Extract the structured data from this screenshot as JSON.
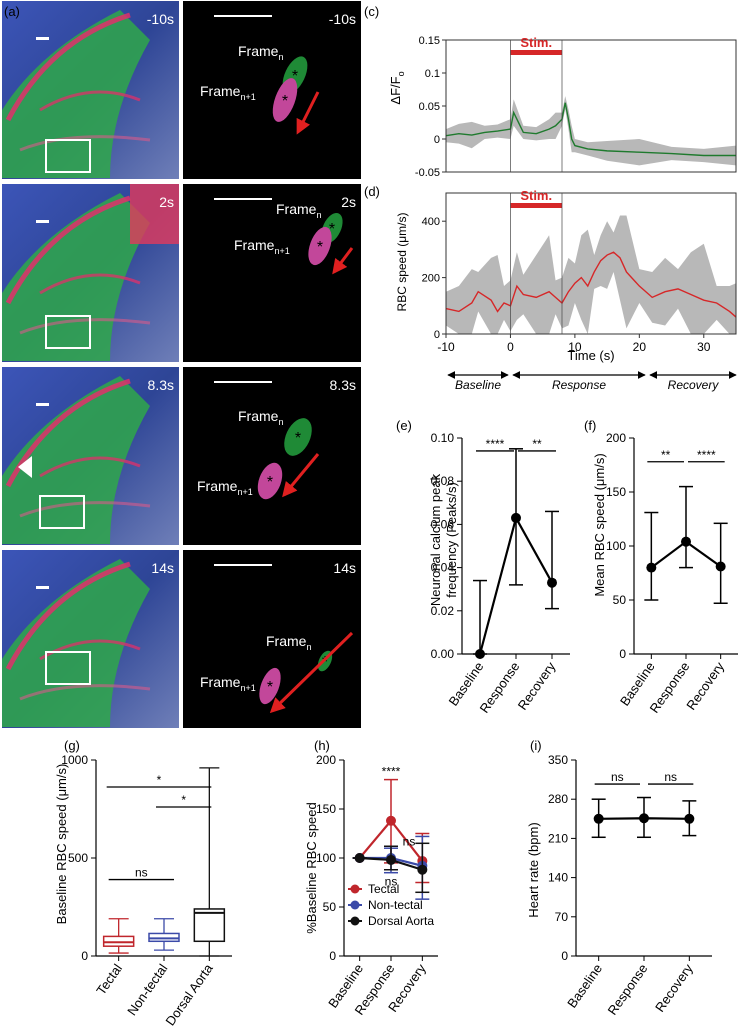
{
  "panel_labels": {
    "a": "(a)",
    "b": "(b)",
    "c": "(c)",
    "d": "(d)",
    "e": "(e)",
    "f": "(f)",
    "g": "(g)",
    "h": "(h)",
    "i": "(i)"
  },
  "micro_times": [
    "-10s",
    "2s",
    "8.3s",
    "14s"
  ],
  "frame_label": "Frame",
  "frame_sub_n": "n",
  "frame_sub_n1": "n+1",
  "asterisk": "*",
  "stim_label": "Stim.",
  "phases": [
    "Baseline",
    "Response",
    "Recovery"
  ],
  "colors": {
    "micro_bg": "#2b3a8c",
    "micro_green": "#2fa84a",
    "micro_red": "#e0306a",
    "frame_n": "#1f8a36",
    "frame_n1": "#c2479a",
    "arrow": "#e02020",
    "stim_bar": "#d62728",
    "calcium_line": "#1f7a2e",
    "rbc_line": "#d62728",
    "band": "#b8b8b8",
    "tectal": "#c0262c",
    "nontectal": "#3b4aa8",
    "dorsal": "#111111"
  },
  "chart_data": [
    {
      "id": "c",
      "type": "line",
      "ylabel": "ΔF/F",
      "ylabel_sub": "o",
      "xlim": [
        -10,
        35
      ],
      "ylim": [
        -0.05,
        0.15
      ],
      "yticks": [
        "-0.05",
        "0",
        "0.05",
        "0.1",
        "0.15"
      ],
      "stim": [
        0,
        8
      ],
      "series": [
        {
          "x": [
            -10,
            -8,
            -6,
            -4,
            -2,
            0,
            0.5,
            2,
            4,
            6,
            7,
            8,
            8.5,
            9,
            9.5,
            10,
            12,
            15,
            20,
            25,
            30,
            35
          ],
          "y": [
            0.005,
            0.008,
            0.006,
            0.01,
            0.012,
            0.015,
            0.04,
            0.01,
            0.008,
            0.015,
            0.02,
            0.03,
            0.055,
            0.03,
            0.0,
            -0.01,
            -0.015,
            -0.018,
            -0.02,
            -0.022,
            -0.025,
            -0.025
          ]
        }
      ]
    },
    {
      "id": "d",
      "type": "line",
      "ylabel": "RBC speed (μm/s)",
      "xlabel": "Time (s)",
      "xlim": [
        -10,
        35
      ],
      "ylim": [
        0,
        500
      ],
      "xticks": [
        "-10",
        "0",
        "10",
        "20",
        "30"
      ],
      "yticks": [
        "0",
        "200",
        "400"
      ],
      "stim": [
        0,
        8
      ],
      "series": [
        {
          "x": [
            -10,
            -8,
            -6,
            -5,
            -3,
            -2,
            -1,
            0,
            1,
            2,
            4,
            6,
            7,
            8,
            9,
            10,
            11,
            12,
            13,
            14,
            15,
            16,
            17,
            18,
            20,
            22,
            24,
            26,
            28,
            30,
            32,
            34,
            35
          ],
          "y": [
            90,
            80,
            110,
            150,
            120,
            80,
            110,
            100,
            170,
            140,
            130,
            150,
            130,
            110,
            150,
            180,
            200,
            170,
            220,
            260,
            280,
            290,
            270,
            220,
            170,
            130,
            150,
            160,
            140,
            120,
            110,
            80,
            60
          ]
        }
      ]
    },
    {
      "id": "e",
      "type": "line",
      "ylabel": "Neuronal calcium peak",
      "ylabel2": "frequency (Peaks/s)",
      "categories": [
        "Baseline",
        "Response",
        "Recovery"
      ],
      "yticks": [
        "0.00",
        "0.02",
        "0.04",
        "0.06",
        "0.08",
        "0.10"
      ],
      "ylim": [
        0,
        0.1
      ],
      "values": [
        0.0,
        0.063,
        0.033
      ],
      "err_low": [
        0.0,
        0.032,
        0.021
      ],
      "err_high": [
        0.034,
        0.095,
        0.066
      ],
      "annotations": [
        "****",
        "**"
      ]
    },
    {
      "id": "f",
      "type": "line",
      "ylabel": "Mean RBC speed (μm/s)",
      "categories": [
        "Baseline",
        "Response",
        "Recovery"
      ],
      "yticks": [
        "0",
        "50",
        "100",
        "150",
        "200"
      ],
      "ylim": [
        0,
        200
      ],
      "values": [
        80,
        104,
        81
      ],
      "err_low": [
        50,
        80,
        47
      ],
      "err_high": [
        131,
        155,
        121
      ],
      "annotations": [
        "**",
        "****"
      ]
    },
    {
      "id": "g",
      "type": "box",
      "ylabel": "Baseline RBC speed (μm/s)",
      "categories": [
        "Tectal",
        "Non-tectal",
        "Dorsal Aorta"
      ],
      "yticks": [
        "0",
        "500",
        "1000"
      ],
      "ylim": [
        0,
        1000
      ],
      "boxes": [
        {
          "min": 15,
          "q1": 50,
          "median": 70,
          "q3": 100,
          "max": 190
        },
        {
          "min": 30,
          "q1": 75,
          "median": 90,
          "q3": 115,
          "max": 190
        },
        {
          "min": 0,
          "q1": 75,
          "median": 220,
          "q3": 240,
          "max": 960
        }
      ],
      "annotations": [
        "*",
        "*",
        "ns"
      ]
    },
    {
      "id": "h",
      "type": "line",
      "ylabel": "%Baseline RBC speed",
      "categories": [
        "Baseline",
        "Response",
        "Recovery"
      ],
      "yticks": [
        "0",
        "50",
        "100",
        "150",
        "200"
      ],
      "ylim": [
        0,
        200
      ],
      "series": [
        {
          "name": "Tectal",
          "values": [
            100,
            138,
            97
          ],
          "err_low": [
            100,
            95,
            75
          ],
          "err_high": [
            100,
            180,
            125
          ]
        },
        {
          "name": "Non-tectal",
          "values": [
            100,
            100,
            92
          ],
          "err_low": [
            100,
            85,
            58
          ],
          "err_high": [
            100,
            110,
            122
          ]
        },
        {
          "name": "Dorsal Aorta",
          "values": [
            100,
            98,
            88
          ],
          "err_low": [
            100,
            88,
            65
          ],
          "err_high": [
            100,
            112,
            115
          ]
        }
      ],
      "annotations": [
        "****",
        "ns",
        "ns"
      ]
    },
    {
      "id": "i",
      "type": "line",
      "ylabel": "Heart rate (bpm)",
      "categories": [
        "Baseline",
        "Response",
        "Recovery"
      ],
      "yticks": [
        "0",
        "70",
        "140",
        "210",
        "280",
        "350"
      ],
      "ylim": [
        0,
        350
      ],
      "values": [
        245,
        246,
        245
      ],
      "err_low": [
        212,
        212,
        215
      ],
      "err_high": [
        280,
        283,
        277
      ],
      "annotations": [
        "ns",
        "ns"
      ]
    }
  ]
}
